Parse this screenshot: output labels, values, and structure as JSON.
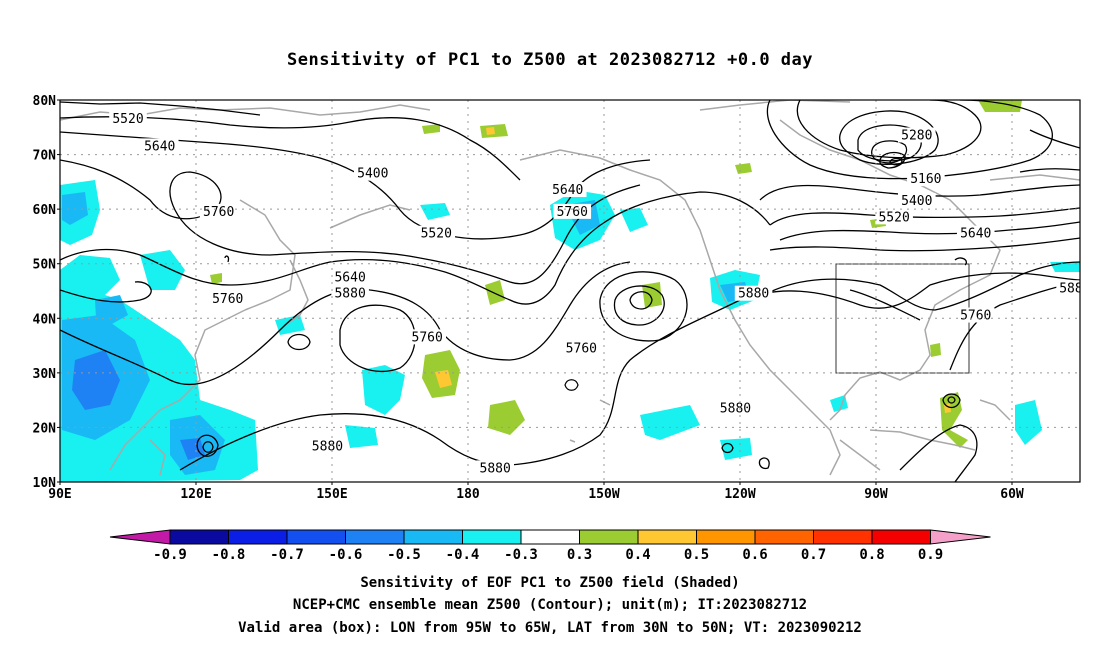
{
  "title": "Sensitivity of PC1 to Z500 at 2023082712 +0.0 day",
  "map": {
    "lat_labels": [
      "80N",
      "70N",
      "60N",
      "50N",
      "40N",
      "30N",
      "20N",
      "10N"
    ],
    "lon_labels": [
      "90E",
      "120E",
      "150E",
      "180",
      "150W",
      "120W",
      "90W",
      "60W"
    ],
    "lon_range": [
      90,
      315
    ],
    "lat_range": [
      10,
      80
    ],
    "valid_box": {
      "lon": [
        265,
        295
      ],
      "lat": [
        30,
        50
      ]
    },
    "contour_labels": [
      {
        "text": "5520",
        "lon": 105,
        "lat": 76.5
      },
      {
        "text": "5640",
        "lon": 112,
        "lat": 71.5
      },
      {
        "text": "5400",
        "lon": 159,
        "lat": 66.5
      },
      {
        "text": "5760",
        "lon": 125,
        "lat": 59.5
      },
      {
        "text": "5520",
        "lon": 173,
        "lat": 55.5
      },
      {
        "text": "5640",
        "lon": 154,
        "lat": 47.5
      },
      {
        "text": "5760",
        "lon": 127,
        "lat": 43.5
      },
      {
        "text": "5880",
        "lon": 154,
        "lat": 44.5
      },
      {
        "text": "5760",
        "lon": 171,
        "lat": 36.5
      },
      {
        "text": "5640",
        "lon": 202,
        "lat": 63.5
      },
      {
        "text": "5760",
        "lon": 203,
        "lat": 59.5
      },
      {
        "text": "5760",
        "lon": 205,
        "lat": 34.5
      },
      {
        "text": "5880",
        "lon": 243,
        "lat": 44.5
      },
      {
        "text": "5880",
        "lon": 239,
        "lat": 23.5
      },
      {
        "text": "5880",
        "lon": 149,
        "lat": 16.5
      },
      {
        "text": "5880",
        "lon": 186,
        "lat": 12.5
      },
      {
        "text": "5280",
        "lon": 279,
        "lat": 73.5
      },
      {
        "text": "5160",
        "lon": 281,
        "lat": 65.5
      },
      {
        "text": "5400",
        "lon": 279,
        "lat": 61.5
      },
      {
        "text": "5520",
        "lon": 274,
        "lat": 58.5
      },
      {
        "text": "5640",
        "lon": 292,
        "lat": 55.5
      },
      {
        "text": "5760",
        "lon": 292,
        "lat": 40.5
      },
      {
        "text": "588",
        "lon": 313,
        "lat": 45.5
      }
    ]
  },
  "colorbar": {
    "labels": [
      "-0.9",
      "-0.8",
      "-0.7",
      "-0.6",
      "-0.5",
      "-0.4",
      "-0.3",
      "0.3",
      "0.4",
      "0.5",
      "0.6",
      "0.7",
      "0.8",
      "0.9"
    ],
    "colors": [
      "#c21aa6",
      "#0a0aa0",
      "#0a1ee6",
      "#1450f0",
      "#1e82f5",
      "#19b9f5",
      "#19f0f0",
      "#ffffff",
      "#9bcd32",
      "#ffc832",
      "#ff9600",
      "#ff6400",
      "#ff3200",
      "#f50000",
      "#f5a0c8"
    ]
  },
  "captions": {
    "line1": "Sensitivity of EOF PC1 to Z500 field (Shaded)",
    "line2": "NCEP+CMC ensemble mean Z500 (Contour); unit(m); IT:2023082712",
    "line3": "Valid area (box): LON from 95W to 65W, LAT from 30N to 50N; VT: 2023090212"
  }
}
